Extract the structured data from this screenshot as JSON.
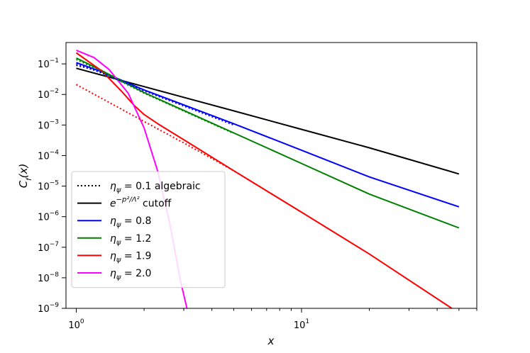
{
  "chart_data": {
    "type": "line",
    "title": "",
    "xlabel": "x",
    "ylabel": "C_f(x)",
    "xscale": "log",
    "yscale": "log",
    "xlim": [
      0.9,
      60
    ],
    "ylim": [
      1e-09,
      0.5
    ],
    "grid": false,
    "legend_position": "lower-left",
    "x_ticks": [
      {
        "value": 1,
        "base": "10",
        "exp": "0"
      },
      {
        "value": 10,
        "base": "10",
        "exp": "1"
      }
    ],
    "y_ticks": [
      {
        "value": 1e-09,
        "base": "10",
        "exp": "−9"
      },
      {
        "value": 1e-08,
        "base": "10",
        "exp": "−8"
      },
      {
        "value": 1e-07,
        "base": "10",
        "exp": "−7"
      },
      {
        "value": 1e-06,
        "base": "10",
        "exp": "−6"
      },
      {
        "value": 1e-05,
        "base": "10",
        "exp": "−5"
      },
      {
        "value": 0.0001,
        "base": "10",
        "exp": "−4"
      },
      {
        "value": 0.001,
        "base": "10",
        "exp": "−3"
      },
      {
        "value": 0.01,
        "base": "10",
        "exp": "−2"
      },
      {
        "value": 0.1,
        "base": "10",
        "exp": "−1"
      }
    ],
    "series": [
      {
        "name": "ηψ = 0.1 algebraic",
        "color": "#000000",
        "dash": true,
        "x": [
          1,
          1.2,
          1.5
        ],
        "y": [
          0.09,
          0.065,
          0.035
        ]
      },
      {
        "name": "e^{-p²/Λ²} cutoff",
        "color": "#000000",
        "dash": false,
        "x": [
          1,
          2,
          5,
          10,
          20,
          50
        ],
        "y": [
          0.072,
          0.018,
          0.0029,
          0.00072,
          0.00018,
          2.5e-05
        ]
      },
      {
        "name": "ηψ = 0.8",
        "color": "#0000ff",
        "dash": false,
        "x": [
          1,
          1.3,
          2,
          5,
          10,
          20,
          50
        ],
        "y": [
          0.11,
          0.055,
          0.014,
          0.0011,
          0.00015,
          2e-05,
          2.1e-06
        ]
      },
      {
        "name": "ηψ = 1.2",
        "color": "#008000",
        "dash": false,
        "x": [
          1,
          1.3,
          2,
          5,
          10,
          20,
          50
        ],
        "y": [
          0.155,
          0.06,
          0.0115,
          0.00055,
          5.5e-05,
          5.5e-06,
          4.3e-07
        ]
      },
      {
        "name": "ηψ = 1.9",
        "color": "#ff0000",
        "dash": false,
        "x": [
          1,
          1.3,
          1.6,
          1.8,
          2,
          2.3,
          3,
          5,
          10,
          20,
          50
        ],
        "y": [
          0.23,
          0.058,
          0.012,
          0.0045,
          0.0022,
          0.0011,
          0.00033,
          3.2e-05,
          1.4e-06,
          6e-08,
          7e-10
        ]
      },
      {
        "name": "ηψ = 2.0",
        "color": "#ff00ff",
        "dash": false,
        "x": [
          1,
          1.2,
          1.4,
          1.7,
          2,
          2.3,
          2.6,
          2.9,
          3.1
        ],
        "y": [
          0.28,
          0.16,
          0.065,
          0.011,
          0.0008,
          3e-05,
          6e-07,
          8e-09,
          1e-09
        ]
      },
      {
        "name": "",
        "color": "#ff0000",
        "dash": true,
        "x": [
          1,
          2,
          3,
          5,
          10
        ],
        "y": [
          0.021,
          0.0013,
          0.00026,
          3.2e-05,
          1.4e-06
        ]
      },
      {
        "name": "",
        "color": "#0000ff",
        "dash": true,
        "x": [
          1,
          1.3,
          2,
          5
        ],
        "y": [
          0.1,
          0.05,
          0.013,
          0.001
        ]
      },
      {
        "name": "",
        "color": "#008000",
        "dash": true,
        "x": [
          1,
          1.3,
          2,
          5
        ],
        "y": [
          0.14,
          0.055,
          0.011,
          0.00053
        ]
      }
    ]
  },
  "legend": {
    "entries": [
      {
        "prefix": "η",
        "sub": "ψ",
        "text": " = 0.1 algebraic",
        "color": "#000000",
        "dash": true
      },
      {
        "prefix": "e",
        "sup": "−p²/Λ²",
        "text": " cutoff",
        "color": "#000000",
        "dash": false
      },
      {
        "prefix": "η",
        "sub": "ψ",
        "text": " = 0.8",
        "color": "#0000ff",
        "dash": false
      },
      {
        "prefix": "η",
        "sub": "ψ",
        "text": " = 1.2",
        "color": "#008000",
        "dash": false
      },
      {
        "prefix": "η",
        "sub": "ψ",
        "text": " = 1.9",
        "color": "#ff0000",
        "dash": false
      },
      {
        "prefix": "η",
        "sub": "ψ",
        "text": " = 2.0",
        "color": "#ff00ff",
        "dash": false
      }
    ]
  }
}
